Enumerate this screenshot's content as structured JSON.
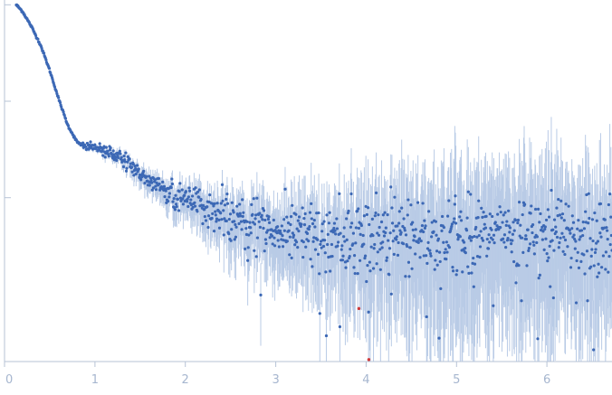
{
  "chart_data": {
    "type": "scatter",
    "title": "",
    "xlabel": "",
    "ylabel": "",
    "xlim": [
      0,
      6.72
    ],
    "ylog": true,
    "ylim_decades": [
      -3.7,
      0.05
    ],
    "y_ticks_decades": [
      -2,
      -1,
      0
    ],
    "x_ticks": [
      0,
      1,
      2,
      3,
      4,
      5,
      6
    ],
    "x_tick_labels": [
      "0",
      "1",
      "2",
      "3",
      "4",
      "5",
      "6"
    ],
    "colors": {
      "points": "#3c68b5",
      "error_bars": "#b9cbe6",
      "outliers": "#d03a3a",
      "axis": "#b7c3d6",
      "tick_text": "#a6b6cf"
    },
    "series": [
      {
        "profile_q": [
          0.13,
          0.2,
          0.3,
          0.4,
          0.5,
          0.6,
          0.7,
          0.8,
          0.88,
          1.0,
          1.1,
          1.2,
          1.3,
          1.4,
          1.5,
          1.6,
          1.7,
          1.8,
          2.0,
          2.2,
          2.4,
          2.6,
          2.8,
          3.0,
          3.2,
          3.5,
          4.0,
          4.5,
          5.0,
          5.5,
          6.0,
          6.72
        ],
        "profile_log10_I": [
          0.0,
          -0.07,
          -0.23,
          -0.42,
          -0.68,
          -0.98,
          -1.25,
          -1.42,
          -1.47,
          -1.49,
          -1.51,
          -1.55,
          -1.6,
          -1.67,
          -1.75,
          -1.83,
          -1.88,
          -1.93,
          -2.02,
          -2.1,
          -2.18,
          -2.24,
          -2.3,
          -2.35,
          -2.39,
          -2.4,
          -2.4,
          -2.4,
          -2.4,
          -2.4,
          -2.4,
          -2.4
        ],
        "scatter_decades": 0.04,
        "n_points": 1100
      }
    ],
    "outliers": [
      {
        "x": 3.92,
        "log10_I": -3.15
      },
      {
        "x": 4.03,
        "log10_I": -3.68
      }
    ]
  }
}
